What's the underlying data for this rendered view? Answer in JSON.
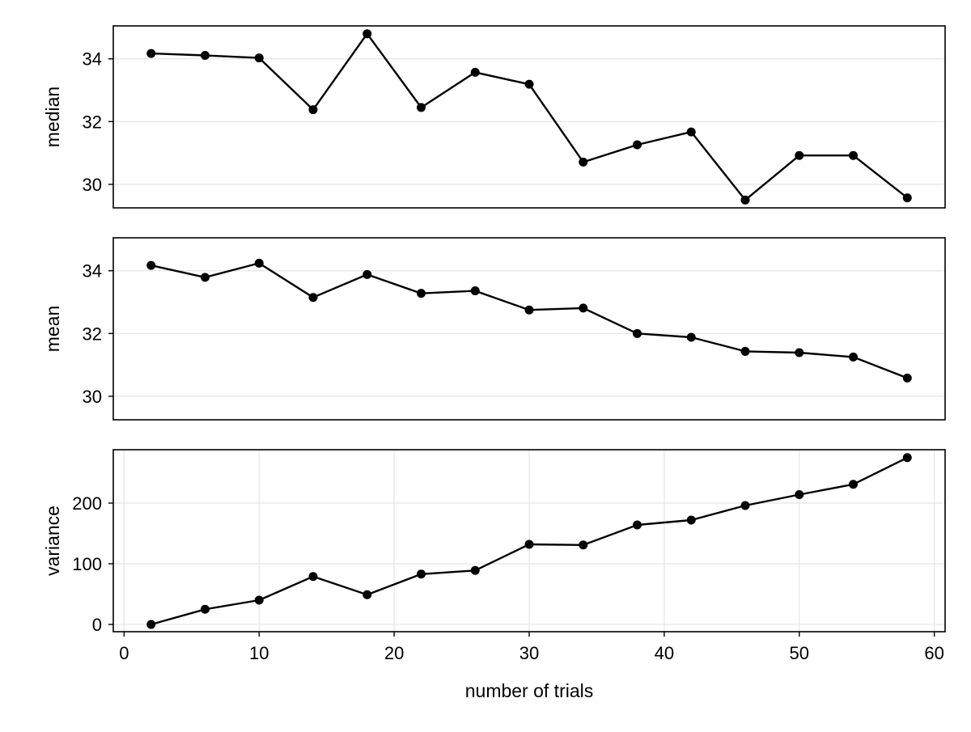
{
  "chart_data": {
    "type": "line",
    "shared_x": {
      "label": "number of trials",
      "ticks": [
        0,
        10,
        20,
        30,
        40,
        50,
        60
      ],
      "range": [
        -0.8,
        60.8
      ]
    },
    "x": [
      2,
      6,
      10,
      14,
      18,
      22,
      26,
      30,
      34,
      38,
      42,
      46,
      50,
      54,
      58
    ],
    "panels": [
      {
        "ylabel": "median",
        "ylim": [
          29.25,
          35.05
        ],
        "yticks": [
          30,
          32,
          34
        ],
        "grid": "y-only",
        "show_x_ticks": false,
        "series": [
          {
            "values": [
              34.17,
              34.11,
              34.03,
              32.38,
              34.8,
              32.45,
              33.57,
              33.19,
              30.71,
              31.26,
              31.67,
              29.5,
              30.92,
              30.92,
              29.57
            ]
          }
        ]
      },
      {
        "ylabel": "mean",
        "ylim": [
          29.25,
          35.05
        ],
        "yticks": [
          30,
          32,
          34
        ],
        "grid": "y-only",
        "show_x_ticks": false,
        "series": [
          {
            "values": [
              34.17,
              33.79,
              34.24,
              33.15,
              33.88,
              33.28,
              33.36,
              32.75,
              32.81,
              32.0,
              31.88,
              31.43,
              31.39,
              31.25,
              30.58
            ]
          }
        ]
      },
      {
        "ylabel": "variance",
        "ylim": [
          -12,
          288
        ],
        "yticks": [
          0,
          100,
          200
        ],
        "grid": "both",
        "show_x_ticks": true,
        "series": [
          {
            "values": [
              0,
              25,
              40,
              79,
              49,
              83,
              89,
              132,
              131,
              164,
              172,
              196,
              214,
              231,
              275
            ]
          }
        ]
      }
    ],
    "style": {
      "line_color": "#000000",
      "marker": "circle",
      "grid_color": "#e5e5e5"
    }
  }
}
